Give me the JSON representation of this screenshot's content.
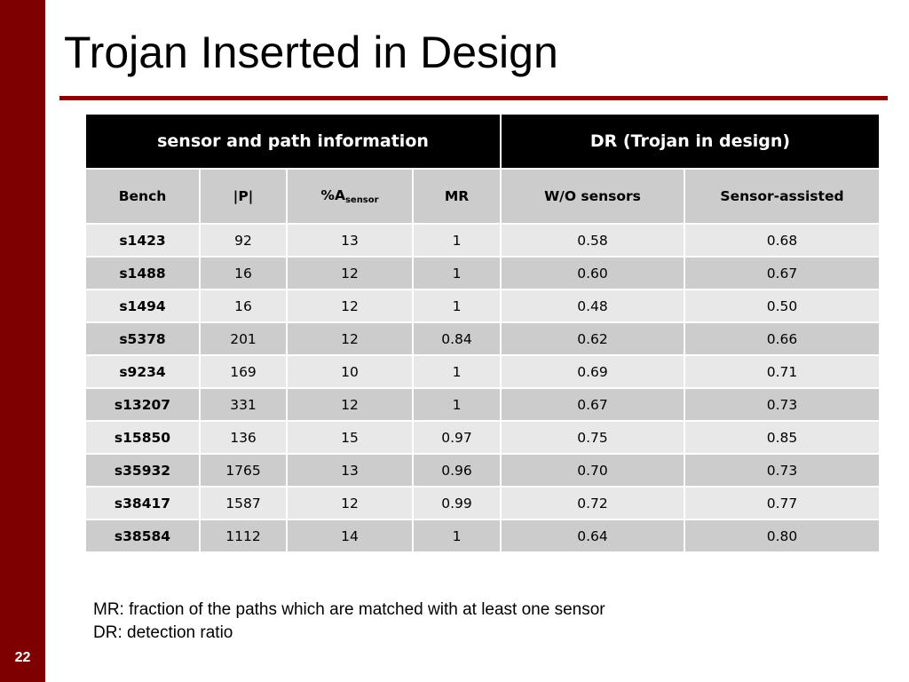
{
  "slide": {
    "title": "Trojan Inserted in Design",
    "page_number": "22"
  },
  "table": {
    "group_headers": [
      "sensor and path information",
      "DR (Trojan in design)"
    ],
    "columns": {
      "bench": "Bench",
      "p": "|P|",
      "asensor_main": "%A",
      "asensor_sub": "sensor",
      "mr": "MR",
      "wo": "W/O sensors",
      "sa": "Sensor-assisted"
    },
    "rows": [
      {
        "bench": "s1423",
        "p": "92",
        "asensor": "13",
        "mr": "1",
        "wo": "0.58",
        "sa": "0.68"
      },
      {
        "bench": "s1488",
        "p": "16",
        "asensor": "12",
        "mr": "1",
        "wo": "0.60",
        "sa": "0.67"
      },
      {
        "bench": "s1494",
        "p": "16",
        "asensor": "12",
        "mr": "1",
        "wo": "0.48",
        "sa": "0.50"
      },
      {
        "bench": "s5378",
        "p": "201",
        "asensor": "12",
        "mr": "0.84",
        "wo": "0.62",
        "sa": "0.66"
      },
      {
        "bench": "s9234",
        "p": "169",
        "asensor": "10",
        "mr": "1",
        "wo": "0.69",
        "sa": "0.71"
      },
      {
        "bench": "s13207",
        "p": "331",
        "asensor": "12",
        "mr": "1",
        "wo": "0.67",
        "sa": "0.73"
      },
      {
        "bench": "s15850",
        "p": "136",
        "asensor": "15",
        "mr": "0.97",
        "wo": "0.75",
        "sa": "0.85"
      },
      {
        "bench": "s35932",
        "p": "1765",
        "asensor": "13",
        "mr": "0.96",
        "wo": "0.70",
        "sa": "0.73"
      },
      {
        "bench": "s38417",
        "p": "1587",
        "asensor": "12",
        "mr": "0.99",
        "wo": "0.72",
        "sa": "0.77"
      },
      {
        "bench": "s38584",
        "p": "1112",
        "asensor": "14",
        "mr": "1",
        "wo": "0.64",
        "sa": "0.80"
      }
    ]
  },
  "notes": {
    "mr": "MR: fraction of the paths which are matched with at least one sensor",
    "dr": "DR: detection ratio"
  },
  "colors": {
    "sidebar": "#7f0000",
    "title_rule": "#8b0000",
    "group_header_bg": "#000000",
    "column_header_bg": "#cccccc",
    "row_light": "#e8e8e8",
    "row_dark": "#cccccc"
  }
}
